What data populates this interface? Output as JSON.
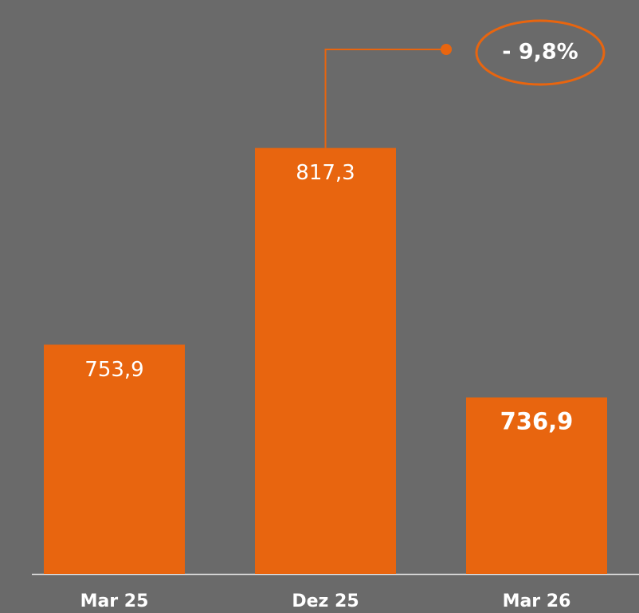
{
  "chart_data": {
    "type": "bar",
    "categories": [
      "Mar 25",
      "Dez 25",
      "Mar 26"
    ],
    "values": [
      753.9,
      817.3,
      736.9
    ],
    "value_labels": [
      "753,9",
      "817,3",
      "736,9"
    ],
    "color": "#e8650f",
    "ylim": [
      680,
      865
    ],
    "annotation": "- 9,8%"
  }
}
